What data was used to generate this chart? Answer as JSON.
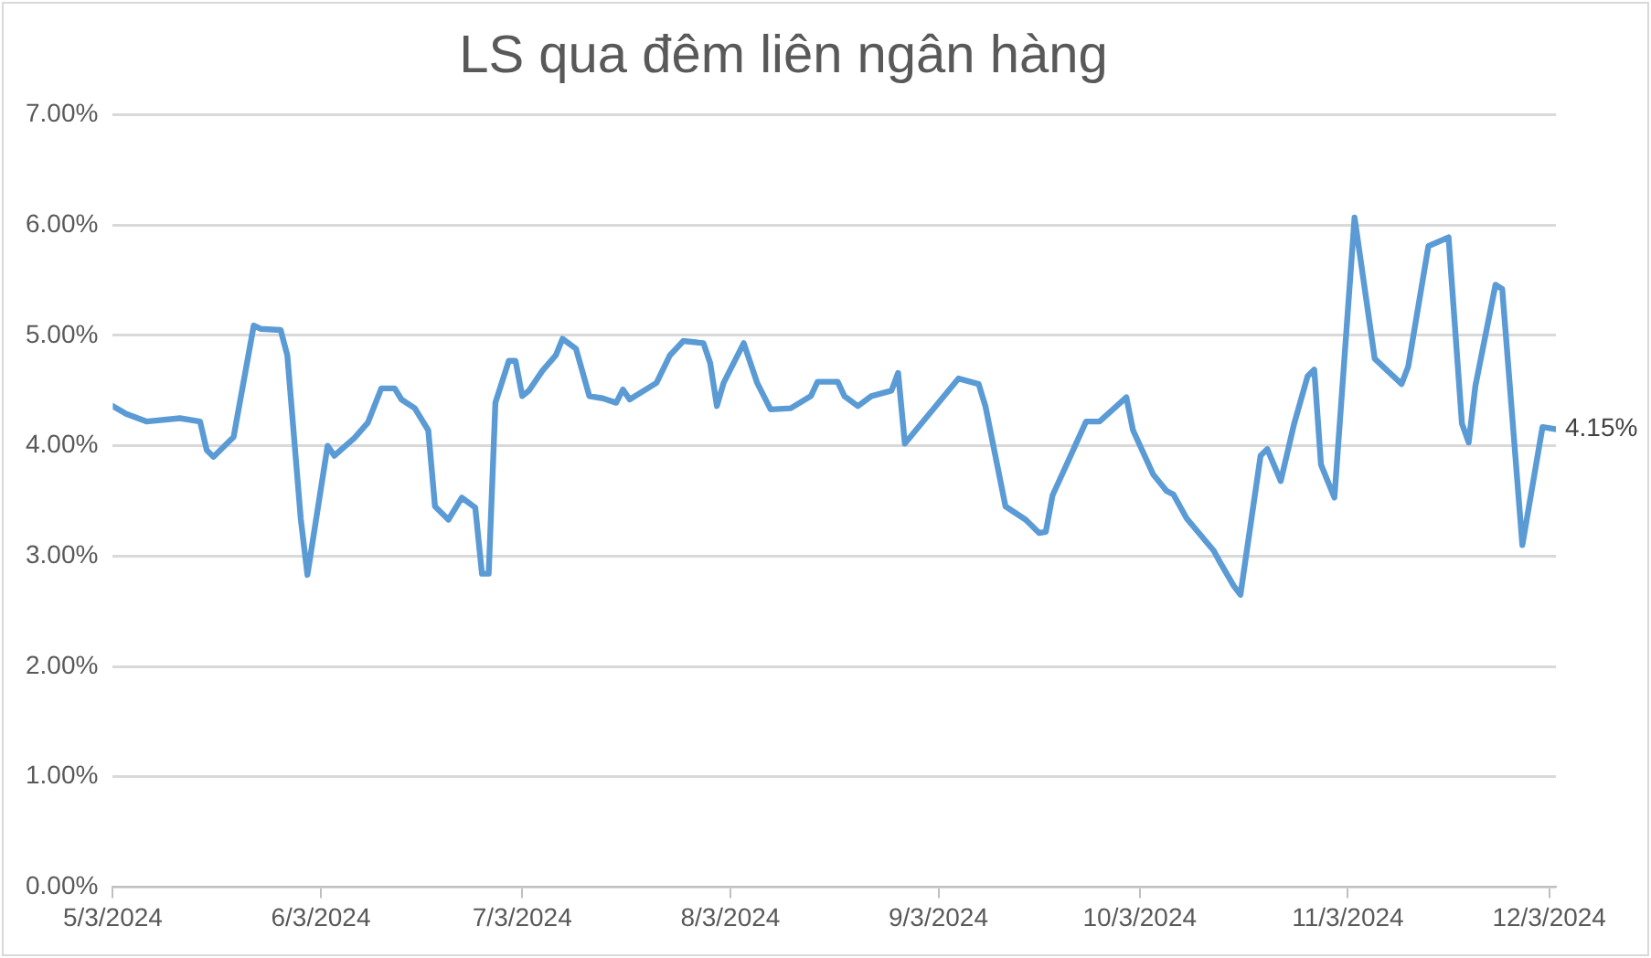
{
  "chart_data": {
    "type": "line",
    "title": "LS qua đêm liên ngân hàng",
    "x": [
      "2024-05-03",
      "2024-05-05",
      "2024-05-08",
      "2024-05-13",
      "2024-05-16",
      "2024-05-17",
      "2024-05-18",
      "2024-05-21",
      "2024-05-24",
      "2024-05-25",
      "2024-05-28",
      "2024-05-29",
      "2024-05-31",
      "2024-06-01",
      "2024-06-04",
      "2024-06-05",
      "2024-06-08",
      "2024-06-10",
      "2024-06-12",
      "2024-06-14",
      "2024-06-15",
      "2024-06-17",
      "2024-06-19",
      "2024-06-20",
      "2024-06-22",
      "2024-06-24",
      "2024-06-26",
      "2024-06-27",
      "2024-06-28",
      "2024-06-29",
      "2024-07-01",
      "2024-07-02",
      "2024-07-03",
      "2024-07-04",
      "2024-07-06",
      "2024-07-08",
      "2024-07-09",
      "2024-07-11",
      "2024-07-13",
      "2024-07-15",
      "2024-07-17",
      "2024-07-18",
      "2024-07-19",
      "2024-07-23",
      "2024-07-25",
      "2024-07-27",
      "2024-07-30",
      "2024-07-31",
      "2024-08-01",
      "2024-08-02",
      "2024-08-05",
      "2024-08-07",
      "2024-08-09",
      "2024-08-12",
      "2024-08-15",
      "2024-08-16",
      "2024-08-19",
      "2024-08-20",
      "2024-08-22",
      "2024-08-24",
      "2024-08-27",
      "2024-08-28",
      "2024-08-29",
      "2024-09-06",
      "2024-09-09",
      "2024-09-10",
      "2024-09-13",
      "2024-09-16",
      "2024-09-18",
      "2024-09-19",
      "2024-09-20",
      "2024-09-23",
      "2024-09-25",
      "2024-09-27",
      "2024-10-01",
      "2024-10-02",
      "2024-10-05",
      "2024-10-07",
      "2024-10-08",
      "2024-10-10",
      "2024-10-14",
      "2024-10-15",
      "2024-10-17",
      "2024-10-18",
      "2024-10-21",
      "2024-10-22",
      "2024-10-24",
      "2024-10-26",
      "2024-10-28",
      "2024-10-29",
      "2024-10-30",
      "2024-11-01",
      "2024-11-04",
      "2024-11-07",
      "2024-11-11",
      "2024-11-12",
      "2024-11-15",
      "2024-11-18",
      "2024-11-20",
      "2024-11-21",
      "2024-11-22",
      "2024-11-25",
      "2024-11-26",
      "2024-11-29",
      "2024-12-02",
      "2024-12-04"
    ],
    "series": [
      {
        "color": "#5b9bd5",
        "values": [
          4.36,
          4.29,
          4.22,
          4.25,
          4.22,
          3.96,
          3.9,
          4.08,
          5.09,
          5.06,
          5.05,
          4.82,
          3.34,
          2.83,
          4.0,
          3.91,
          4.07,
          4.21,
          4.52,
          4.52,
          4.42,
          4.34,
          4.14,
          3.45,
          3.33,
          3.53,
          3.44,
          2.84,
          2.84,
          4.39,
          4.77,
          4.77,
          4.45,
          4.5,
          4.68,
          4.82,
          4.97,
          4.88,
          4.45,
          4.43,
          4.39,
          4.51,
          4.42,
          4.57,
          4.82,
          4.95,
          4.93,
          4.75,
          4.36,
          4.57,
          4.93,
          4.57,
          4.33,
          4.34,
          4.45,
          4.58,
          4.58,
          4.45,
          4.36,
          4.45,
          4.5,
          4.66,
          4.02,
          4.61,
          4.56,
          4.36,
          3.45,
          3.33,
          3.21,
          3.22,
          3.55,
          3.95,
          4.22,
          4.22,
          4.44,
          4.14,
          3.74,
          3.59,
          3.56,
          3.34,
          3.05,
          2.94,
          2.73,
          2.65,
          3.91,
          3.97,
          3.68,
          4.2,
          4.63,
          4.69,
          3.83,
          3.53,
          6.07,
          4.79,
          4.56,
          4.72,
          5.81,
          5.89,
          4.2,
          4.03,
          4.54,
          5.46,
          5.42,
          3.1,
          4.17,
          4.15
        ],
        "value_labels": [
          null,
          null,
          null,
          null,
          null,
          null,
          null,
          null,
          null,
          null,
          null,
          null,
          null,
          null,
          null,
          null,
          null,
          null,
          null,
          null,
          null,
          null,
          null,
          null,
          null,
          null,
          null,
          null,
          null,
          null,
          null,
          null,
          null,
          null,
          null,
          null,
          null,
          null,
          null,
          null,
          null,
          null,
          null,
          null,
          null,
          null,
          null,
          null,
          null,
          null,
          null,
          null,
          null,
          null,
          null,
          null,
          null,
          null,
          null,
          null,
          null,
          null,
          null,
          null,
          null,
          null,
          null,
          null,
          null,
          null,
          null,
          null,
          null,
          null,
          null,
          null,
          null,
          null,
          null,
          null,
          null,
          null,
          null,
          null,
          null,
          null,
          null,
          null,
          null,
          null,
          null,
          null,
          null,
          null,
          null,
          null,
          null,
          null,
          null,
          null,
          null,
          null,
          null,
          null,
          null,
          "4.15%"
        ]
      }
    ],
    "xlim": [
      "2024-05-03",
      "2024-12-04"
    ],
    "xticks": [
      {
        "value": "2024-05-03",
        "label": "5/3/2024"
      },
      {
        "value": "2024-06-03",
        "label": "6/3/2024"
      },
      {
        "value": "2024-07-03",
        "label": "7/3/2024"
      },
      {
        "value": "2024-08-03",
        "label": "8/3/2024"
      },
      {
        "value": "2024-09-03",
        "label": "9/3/2024"
      },
      {
        "value": "2024-10-03",
        "label": "10/3/2024"
      },
      {
        "value": "2024-11-03",
        "label": "11/3/2024"
      },
      {
        "value": "2024-12-03",
        "label": "12/3/2024"
      }
    ],
    "ylim": [
      0,
      7
    ],
    "yticks": [
      {
        "value": 0,
        "label": "0.00%"
      },
      {
        "value": 1,
        "label": "1.00%"
      },
      {
        "value": 2,
        "label": "2.00%"
      },
      {
        "value": 3,
        "label": "3.00%"
      },
      {
        "value": 4,
        "label": "4.00%"
      },
      {
        "value": 5,
        "label": "5.00%"
      },
      {
        "value": 6,
        "label": "6.00%"
      },
      {
        "value": 7,
        "label": "7.00%"
      }
    ],
    "grid": "y",
    "marker": "none",
    "line_style": "solid",
    "legend": false
  }
}
